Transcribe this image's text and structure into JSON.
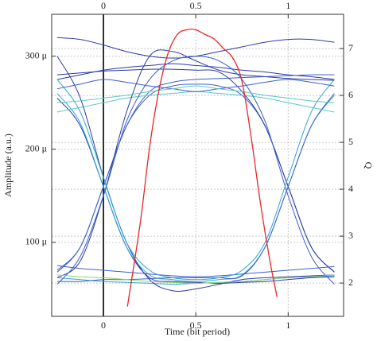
{
  "chart_data": {
    "type": "line",
    "x_label": "Time (bit period)",
    "y_label": "Amplitude (a.u.)",
    "y2_label": "Q",
    "xlim": [
      -0.28,
      1.3
    ],
    "xticks": [
      0,
      0.5,
      1
    ],
    "ylim": [
      20.5,
      345
    ],
    "yticks": [
      {
        "value": 100,
        "label": "100 μ"
      },
      {
        "value": 200,
        "label": "200 μ"
      },
      {
        "value": 300,
        "label": "300 μ"
      }
    ],
    "y2lim": [
      1.29,
      7.73
    ],
    "y2ticks": [
      2,
      3,
      4,
      5,
      6,
      7
    ],
    "grid": true,
    "x": [
      -0.25,
      -0.125,
      0,
      0.125,
      0.25,
      0.375,
      0.5,
      0.625,
      0.75,
      0.875,
      1,
      1.125,
      1.25
    ],
    "series": [
      {
        "color": "#2b3aa6",
        "values": [
          275,
          280,
          285,
          288,
          290,
          292,
          290,
          288,
          285,
          283,
          280,
          278,
          275
        ]
      },
      {
        "color": "#2fa6d8",
        "values": [
          62,
          60,
          58,
          57,
          56,
          55,
          56,
          57,
          58,
          60,
          62,
          63,
          64
        ]
      },
      {
        "color": "#3b5fc9",
        "values": [
          70,
          95,
          160,
          225,
          262,
          272,
          275,
          276,
          277,
          278,
          279,
          280,
          280
        ]
      },
      {
        "color": "#2b3aa6",
        "values": [
          255,
          225,
          160,
          95,
          62,
          58,
          57,
          56,
          57,
          58,
          60,
          62,
          63
        ]
      },
      {
        "color": "#3b5fc9",
        "values": [
          68,
          95,
          160,
          225,
          258,
          268,
          270,
          268,
          258,
          225,
          160,
          95,
          68
        ]
      },
      {
        "color": "#2fa6d8",
        "values": [
          260,
          228,
          160,
          95,
          65,
          60,
          58,
          60,
          65,
          95,
          160,
          225,
          258
        ]
      },
      {
        "color": "#2b3aa6",
        "values": [
          280,
          282,
          284,
          285,
          286,
          286,
          285,
          283,
          262,
          225,
          160,
          95,
          68
        ]
      },
      {
        "color": "#3b5fc9",
        "values": [
          58,
          58,
          60,
          60,
          61,
          62,
          62,
          62,
          64,
          95,
          160,
          225,
          260
        ]
      },
      {
        "color": "#2b3aa6",
        "values": [
          320,
          318,
          312,
          305,
          300,
          298,
          300,
          305,
          310,
          315,
          318,
          318,
          315
        ]
      },
      {
        "color": "#5cc8c8",
        "values": [
          240,
          245,
          250,
          255,
          258,
          260,
          262,
          260,
          258,
          255,
          250,
          245,
          240
        ]
      },
      {
        "color": "#3b5fc9",
        "values": [
          75,
          72,
          70,
          68,
          66,
          64,
          63,
          64,
          66,
          68,
          70,
          72,
          74
        ]
      },
      {
        "color": "#2b3aa6",
        "values": [
          62,
          80,
          150,
          240,
          300,
          305,
          295,
          285,
          280,
          278,
          276,
          275,
          274
        ]
      },
      {
        "color": "#2b3aa6",
        "values": [
          300,
          255,
          170,
          100,
          60,
          48,
          50,
          55,
          60,
          62,
          63,
          64,
          65
        ]
      },
      {
        "color": "#3b5fc9",
        "values": [
          55,
          85,
          150,
          230,
          275,
          295,
          300,
          295,
          275,
          230,
          150,
          85,
          55
        ]
      },
      {
        "color": "#2fa6d8",
        "values": [
          275,
          240,
          170,
          100,
          70,
          62,
          60,
          62,
          70,
          100,
          170,
          240,
          275
        ]
      },
      {
        "color": "#3b5fc9",
        "values": [
          265,
          270,
          275,
          272,
          268,
          265,
          262,
          265,
          268,
          272,
          275,
          272,
          268
        ]
      },
      {
        "color": "#8fd36a",
        "values": [
          65,
          63,
          62,
          60,
          58,
          57,
          56,
          57,
          58,
          60,
          62,
          63,
          65
        ]
      },
      {
        "color": "#5cc8c8",
        "values": [
          250,
          252,
          255,
          258,
          262,
          265,
          268,
          265,
          262,
          258,
          255,
          252,
          250
        ]
      },
      {
        "color": "#e8262a",
        "axis": "y2",
        "x": [
          0.13,
          0.2,
          0.25,
          0.3,
          0.35,
          0.4,
          0.45,
          0.5,
          0.55,
          0.6,
          0.65,
          0.7,
          0.75,
          0.8,
          0.85,
          0.9,
          0.94
        ],
        "values": [
          1.5,
          3.3,
          4.9,
          6.1,
          6.9,
          7.3,
          7.4,
          7.4,
          7.3,
          7.2,
          7.0,
          6.8,
          6.3,
          5.1,
          3.7,
          2.5,
          1.7
        ]
      }
    ]
  }
}
